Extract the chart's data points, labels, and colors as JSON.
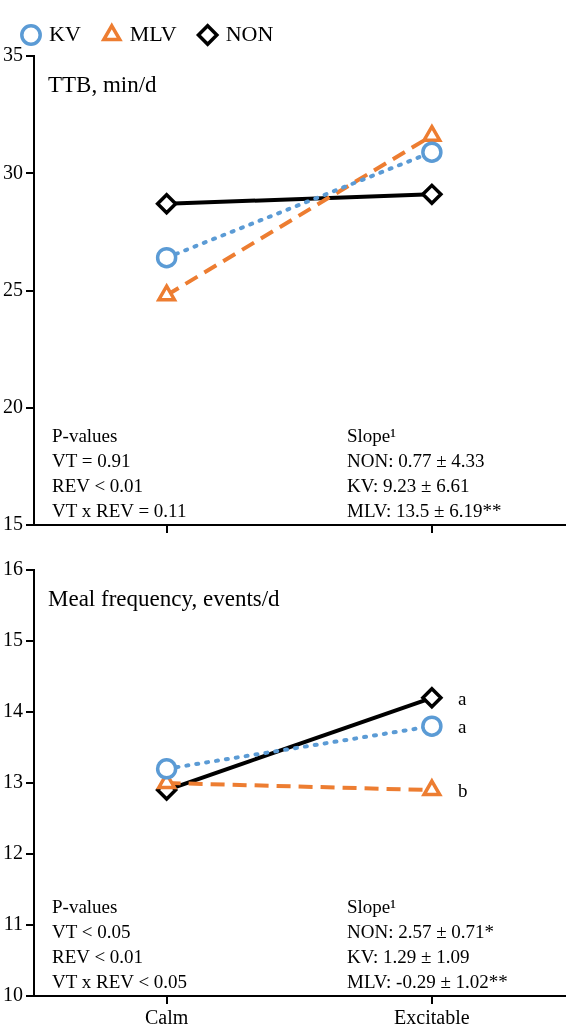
{
  "chart_data": [
    {
      "type": "line",
      "title": "TTB, min/d",
      "categories": [
        null,
        null
      ],
      "ylim": [
        15,
        35
      ],
      "yticks": [
        15,
        20,
        25,
        30,
        35
      ],
      "grid": false,
      "legend": "top",
      "tick_labels": "y",
      "series": [
        {
          "name": "KV",
          "color": "#5b9bd5",
          "marker": "circle",
          "line_style": "dotted",
          "values": [
            26.4,
            30.9
          ]
        },
        {
          "name": "MLV",
          "color": "#ed7d31",
          "marker": "triangle",
          "line_style": "dashed",
          "values": [
            24.8,
            31.6
          ]
        },
        {
          "name": "NON",
          "color": "#000000",
          "marker": "diamond",
          "line_style": "solid",
          "values": [
            28.7,
            29.1
          ]
        }
      ],
      "annotations": [
        "P-values\nVT = 0.91\nREV < 0.01\nVT x REV = 0.11",
        "Slope¹\nNON: 0.77 ± 4.33\nKV: 9.23 ± 6.61\nMLV: 13.5 ± 6.19**"
      ]
    },
    {
      "type": "line",
      "title": "Meal frequency, events/d",
      "categories": [
        "Calm",
        "Excitable"
      ],
      "ylim": [
        10,
        16
      ],
      "yticks": [
        10,
        11,
        12,
        13,
        14,
        15,
        16
      ],
      "grid": false,
      "legend": false,
      "series": [
        {
          "color": "#5b9bd5",
          "marker": "circle",
          "line_style": "dotted",
          "values": [
            13.2,
            13.8
          ]
        },
        {
          "color": "#ed7d31",
          "marker": "triangle",
          "line_style": "dashed",
          "values": [
            13.0,
            12.9
          ]
        },
        {
          "color": "#000000",
          "marker": "diamond",
          "line_style": "solid",
          "values": [
            12.9,
            14.2
          ]
        }
      ],
      "annotations": [
        "P-values\nVT < 0.05\nREV < 0.01\nVT x REV < 0.05",
        "Slope¹\nNON: 2.57 ± 0.71*\nKV: 1.29 ± 1.09\nMLV: -0.29 ± 1.02**",
        {
          "text": "a",
          "x": "Excitable",
          "y": 14.2
        },
        {
          "text": "a",
          "x": "Excitable",
          "y": 13.8
        },
        {
          "text": "b",
          "x": "Excitable",
          "y": 12.9
        }
      ]
    }
  ]
}
